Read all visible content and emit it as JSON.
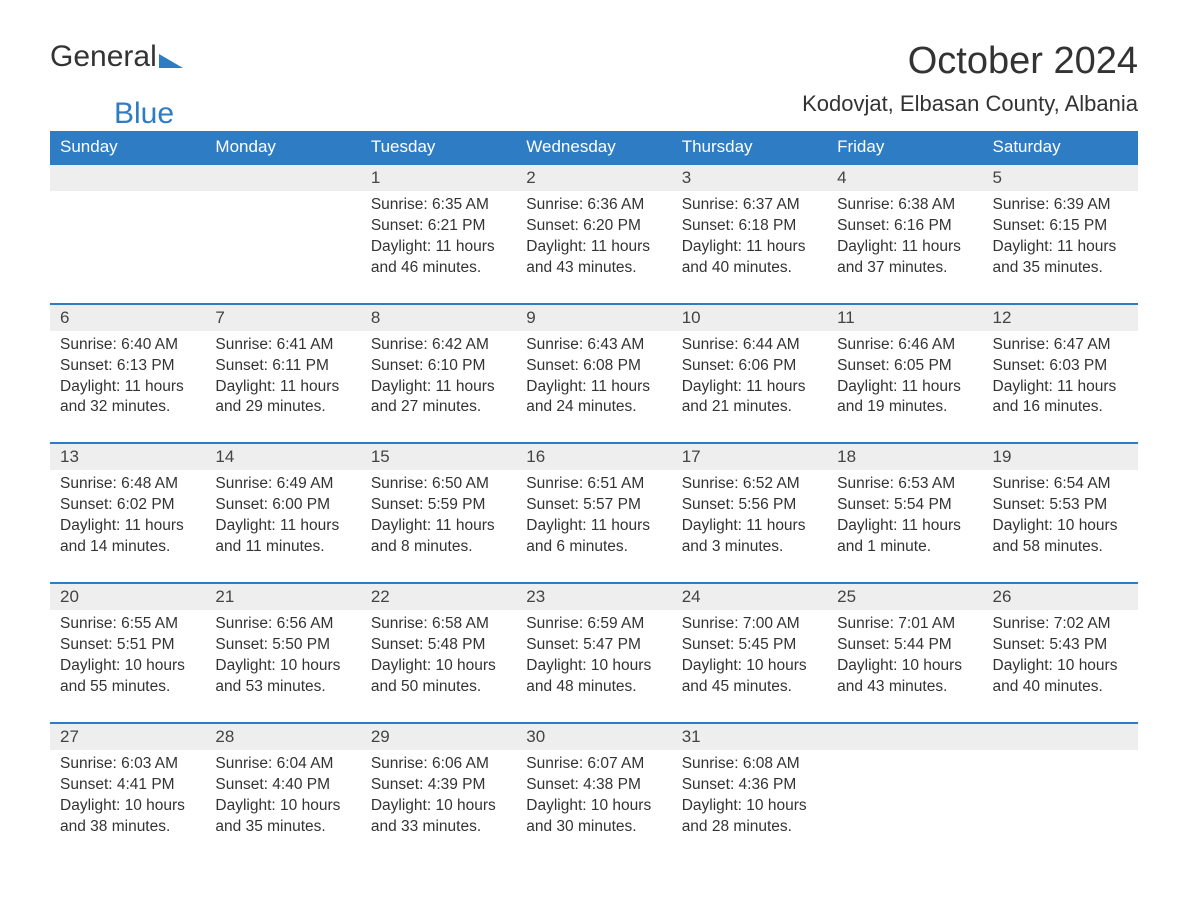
{
  "logo": {
    "text1": "General",
    "text2": "Blue"
  },
  "title": "October 2024",
  "subtitle": "Kodovjat, Elbasan County, Albania",
  "daysOfWeek": [
    "Sunday",
    "Monday",
    "Tuesday",
    "Wednesday",
    "Thursday",
    "Friday",
    "Saturday"
  ],
  "style": {
    "header_bg": "#2e7cc4",
    "header_fg": "#ffffff",
    "daynum_bg": "#eeeeee",
    "daynum_border": "#2e7cc4",
    "text_color": "#333333",
    "title_fontsize": 38,
    "subtitle_fontsize": 22,
    "th_fontsize": 17,
    "cell_fontsize": 15.5
  },
  "weeks": [
    [
      null,
      null,
      {
        "n": "1",
        "sunrise": "6:35 AM",
        "sunset": "6:21 PM",
        "daylight": "11 hours and 46 minutes."
      },
      {
        "n": "2",
        "sunrise": "6:36 AM",
        "sunset": "6:20 PM",
        "daylight": "11 hours and 43 minutes."
      },
      {
        "n": "3",
        "sunrise": "6:37 AM",
        "sunset": "6:18 PM",
        "daylight": "11 hours and 40 minutes."
      },
      {
        "n": "4",
        "sunrise": "6:38 AM",
        "sunset": "6:16 PM",
        "daylight": "11 hours and 37 minutes."
      },
      {
        "n": "5",
        "sunrise": "6:39 AM",
        "sunset": "6:15 PM",
        "daylight": "11 hours and 35 minutes."
      }
    ],
    [
      {
        "n": "6",
        "sunrise": "6:40 AM",
        "sunset": "6:13 PM",
        "daylight": "11 hours and 32 minutes."
      },
      {
        "n": "7",
        "sunrise": "6:41 AM",
        "sunset": "6:11 PM",
        "daylight": "11 hours and 29 minutes."
      },
      {
        "n": "8",
        "sunrise": "6:42 AM",
        "sunset": "6:10 PM",
        "daylight": "11 hours and 27 minutes."
      },
      {
        "n": "9",
        "sunrise": "6:43 AM",
        "sunset": "6:08 PM",
        "daylight": "11 hours and 24 minutes."
      },
      {
        "n": "10",
        "sunrise": "6:44 AM",
        "sunset": "6:06 PM",
        "daylight": "11 hours and 21 minutes."
      },
      {
        "n": "11",
        "sunrise": "6:46 AM",
        "sunset": "6:05 PM",
        "daylight": "11 hours and 19 minutes."
      },
      {
        "n": "12",
        "sunrise": "6:47 AM",
        "sunset": "6:03 PM",
        "daylight": "11 hours and 16 minutes."
      }
    ],
    [
      {
        "n": "13",
        "sunrise": "6:48 AM",
        "sunset": "6:02 PM",
        "daylight": "11 hours and 14 minutes."
      },
      {
        "n": "14",
        "sunrise": "6:49 AM",
        "sunset": "6:00 PM",
        "daylight": "11 hours and 11 minutes."
      },
      {
        "n": "15",
        "sunrise": "6:50 AM",
        "sunset": "5:59 PM",
        "daylight": "11 hours and 8 minutes."
      },
      {
        "n": "16",
        "sunrise": "6:51 AM",
        "sunset": "5:57 PM",
        "daylight": "11 hours and 6 minutes."
      },
      {
        "n": "17",
        "sunrise": "6:52 AM",
        "sunset": "5:56 PM",
        "daylight": "11 hours and 3 minutes."
      },
      {
        "n": "18",
        "sunrise": "6:53 AM",
        "sunset": "5:54 PM",
        "daylight": "11 hours and 1 minute."
      },
      {
        "n": "19",
        "sunrise": "6:54 AM",
        "sunset": "5:53 PM",
        "daylight": "10 hours and 58 minutes."
      }
    ],
    [
      {
        "n": "20",
        "sunrise": "6:55 AM",
        "sunset": "5:51 PM",
        "daylight": "10 hours and 55 minutes."
      },
      {
        "n": "21",
        "sunrise": "6:56 AM",
        "sunset": "5:50 PM",
        "daylight": "10 hours and 53 minutes."
      },
      {
        "n": "22",
        "sunrise": "6:58 AM",
        "sunset": "5:48 PM",
        "daylight": "10 hours and 50 minutes."
      },
      {
        "n": "23",
        "sunrise": "6:59 AM",
        "sunset": "5:47 PM",
        "daylight": "10 hours and 48 minutes."
      },
      {
        "n": "24",
        "sunrise": "7:00 AM",
        "sunset": "5:45 PM",
        "daylight": "10 hours and 45 minutes."
      },
      {
        "n": "25",
        "sunrise": "7:01 AM",
        "sunset": "5:44 PM",
        "daylight": "10 hours and 43 minutes."
      },
      {
        "n": "26",
        "sunrise": "7:02 AM",
        "sunset": "5:43 PM",
        "daylight": "10 hours and 40 minutes."
      }
    ],
    [
      {
        "n": "27",
        "sunrise": "6:03 AM",
        "sunset": "4:41 PM",
        "daylight": "10 hours and 38 minutes."
      },
      {
        "n": "28",
        "sunrise": "6:04 AM",
        "sunset": "4:40 PM",
        "daylight": "10 hours and 35 minutes."
      },
      {
        "n": "29",
        "sunrise": "6:06 AM",
        "sunset": "4:39 PM",
        "daylight": "10 hours and 33 minutes."
      },
      {
        "n": "30",
        "sunrise": "6:07 AM",
        "sunset": "4:38 PM",
        "daylight": "10 hours and 30 minutes."
      },
      {
        "n": "31",
        "sunrise": "6:08 AM",
        "sunset": "4:36 PM",
        "daylight": "10 hours and 28 minutes."
      },
      null,
      null
    ]
  ],
  "labels": {
    "sunrise": "Sunrise: ",
    "sunset": "Sunset: ",
    "daylight": "Daylight: "
  }
}
